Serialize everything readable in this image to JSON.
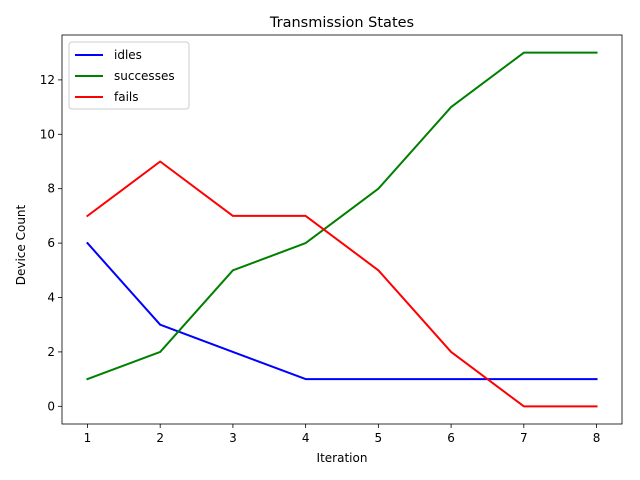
{
  "chart_data": {
    "type": "line",
    "title": "Transmission States",
    "xlabel": "Iteration",
    "ylabel": "Device Count",
    "x": [
      1,
      2,
      3,
      4,
      5,
      6,
      7,
      8
    ],
    "xticks": [
      1,
      2,
      3,
      4,
      5,
      6,
      7,
      8
    ],
    "yticks": [
      0,
      2,
      4,
      6,
      8,
      10,
      12
    ],
    "xlim": [
      0.65,
      8.35
    ],
    "ylim": [
      -0.65,
      13.65
    ],
    "grid": false,
    "legend_position": "top-left",
    "series": [
      {
        "name": "idles",
        "color": "#0000ff",
        "values": [
          6,
          3,
          2,
          1,
          1,
          1,
          1,
          1
        ]
      },
      {
        "name": "successes",
        "color": "#008000",
        "values": [
          1,
          2,
          5,
          6,
          8,
          11,
          13,
          13
        ]
      },
      {
        "name": "fails",
        "color": "#ff0000",
        "values": [
          7,
          9,
          7,
          7,
          5,
          2,
          0,
          0
        ]
      }
    ]
  }
}
